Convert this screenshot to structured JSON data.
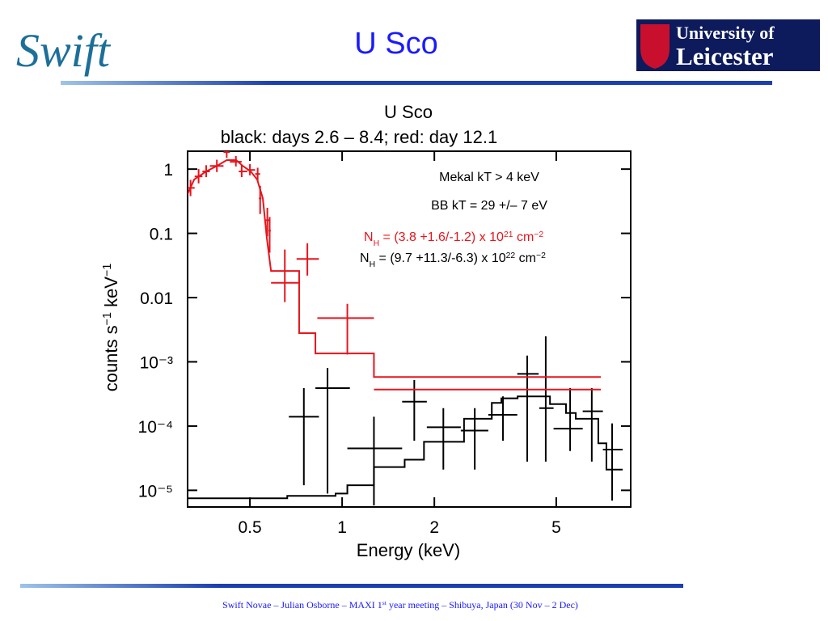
{
  "header": {
    "title": "U Sco",
    "logo_left": "Swift",
    "logo_right": [
      "University of",
      "Leicester"
    ]
  },
  "footer": {
    "parts": [
      {
        "text": "Swift Novae – Julian Osborne – MAXI 1"
      },
      {
        "text": "st",
        "shift": "super"
      },
      {
        "text": " year meeting – Shibuya, Japan (30 Nov – 2 Dec)"
      }
    ]
  },
  "chart_data": {
    "type": "scatter",
    "title": "U Sco",
    "subtitle": "black: days 2.6 – 8.4; red: day 12.1",
    "x_label": "Energy (keV)",
    "y_label": [
      {
        "text": "counts s"
      },
      {
        "text": "−1",
        "shift": "super"
      },
      {
        "text": " keV"
      },
      {
        "text": "−1",
        "shift": "super"
      }
    ],
    "xlog": true,
    "ylog": true,
    "xlim": [
      0.313,
      8.75
    ],
    "ylim": [
      5.5e-06,
      1.9
    ],
    "xticks": [
      0.5,
      1,
      2,
      5
    ],
    "yticks": [
      1,
      0.1,
      0.01,
      {
        "value": 0.001,
        "label": "10⁻³"
      },
      {
        "value": 0.0001,
        "label": "10⁻⁴"
      },
      {
        "value": 1e-05,
        "label": "10⁻⁵"
      }
    ],
    "annotations": [
      {
        "color": "#000000",
        "parts": [
          {
            "text": "Mekal kT > 4 keV"
          }
        ]
      },
      {
        "color": "#000000",
        "parts": [
          {
            "text": "BB kT = 29 +/– 7 eV"
          }
        ]
      },
      {
        "color": "#e8141c",
        "parts": [
          {
            "text": "N"
          },
          {
            "text": "H",
            "shift": "sub"
          },
          {
            "text": " = (3.8 +1.6/-1.2) x 10"
          },
          {
            "text": "21",
            "shift": "super"
          },
          {
            "text": " cm"
          },
          {
            "text": "−2",
            "shift": "super"
          }
        ]
      },
      {
        "color": "#000000",
        "parts": [
          {
            "text": "N"
          },
          {
            "text": "H",
            "shift": "sub"
          },
          {
            "text": " = (9.7 +11.3/-6.3) x 10"
          },
          {
            "text": "22",
            "shift": "super"
          },
          {
            "text": " cm"
          },
          {
            "text": "−2",
            "shift": "super"
          }
        ]
      }
    ],
    "series": [
      {
        "style": "errorbar",
        "color": "#e8141c",
        "x": [
          0.32,
          0.34,
          0.36,
          0.39,
          0.42,
          0.45,
          0.47,
          0.5,
          0.53,
          0.54,
          0.57,
          0.58,
          0.65,
          0.77,
          1.04
        ],
        "x_low": [
          0.31,
          0.33,
          0.35,
          0.37,
          0.41,
          0.43,
          0.46,
          0.49,
          0.52,
          0.535,
          0.56,
          0.575,
          0.586,
          0.71,
          0.83
        ],
        "x_high": [
          0.33,
          0.35,
          0.37,
          0.41,
          0.43,
          0.47,
          0.49,
          0.52,
          0.54,
          0.545,
          0.58,
          0.585,
          0.724,
          0.84,
          1.27
        ],
        "values": [
          0.51,
          0.77,
          0.92,
          1.12,
          1.84,
          1.3,
          0.92,
          0.97,
          0.84,
          0.35,
          0.16,
          0.11,
          0.017,
          0.04,
          0.0048
        ],
        "y_low": [
          0.38,
          0.6,
          0.75,
          0.9,
          1.5,
          1.1,
          0.75,
          0.8,
          0.65,
          0.2,
          0.09,
          0.05,
          0.0085,
          0.022,
          0.0013
        ],
        "y_high": [
          0.68,
          1.0,
          1.15,
          1.4,
          2.2,
          1.6,
          1.15,
          1.2,
          1.05,
          0.55,
          0.25,
          0.18,
          0.056,
          0.07,
          0.008
        ]
      },
      {
        "style": "errorbar",
        "color": "#000000",
        "x": [
          0.75,
          0.896,
          1.27,
          1.72,
          2.14,
          2.71,
          3.35,
          4.02,
          4.62,
          5.55,
          6.53,
          7.61
        ],
        "x_low": [
          0.67,
          0.818,
          1.04,
          1.57,
          1.89,
          2.44,
          3.0,
          3.73,
          4.4,
          4.9,
          6.1,
          7.1
        ],
        "x_high": [
          0.84,
          1.06,
          1.57,
          1.89,
          2.44,
          3.0,
          3.73,
          4.38,
          4.9,
          6.1,
          7.1,
          8.24
        ],
        "values": [
          0.00014,
          0.00039,
          4.5e-05,
          0.00024,
          9.6e-05,
          8.5e-05,
          0.00015,
          0.00065,
          0.00019,
          9.1e-05,
          0.00017,
          4.3e-05
        ],
        "y_low": [
          1.2e-05,
          8.9e-06,
          5.8e-06,
          5.9e-05,
          2.1e-05,
          2.1e-05,
          5.9e-05,
          2.8e-05,
          2.8e-05,
          4.1e-05,
          2.8e-05,
          6.9e-06
        ],
        "y_high": [
          0.00039,
          0.0008,
          0.00014,
          0.00052,
          0.00019,
          0.00019,
          0.00029,
          0.00125,
          0.0025,
          0.00039,
          0.00039,
          0.00011
        ]
      },
      {
        "style": "line",
        "color": "#e8141c",
        "x": [
          0.313,
          0.329,
          0.36,
          0.39,
          0.42,
          0.451,
          0.474,
          0.503,
          0.528,
          0.551,
          0.568,
          0.586,
          0.724,
          0.724,
          0.818,
          0.818,
          1.27,
          1.27,
          6.99
        ],
        "values": [
          0.41,
          0.69,
          0.92,
          1.12,
          1.38,
          1.38,
          1.12,
          0.92,
          0.69,
          0.35,
          0.083,
          0.026,
          0.026,
          0.0028,
          0.0028,
          0.00135,
          0.00135,
          0.00058,
          0.00058
        ]
      },
      {
        "style": "line",
        "color": "#e8141c",
        "x": [
          1.27,
          6.99
        ],
        "values": [
          0.00037,
          0.00037
        ]
      },
      {
        "style": "line",
        "color": "#000000",
        "x": [
          0.313,
          0.662,
          0.662,
          0.952,
          0.952,
          1.04,
          1.04,
          1.27,
          1.27,
          1.6,
          1.6,
          1.85,
          1.85,
          2.5,
          2.5,
          3.08,
          3.08,
          3.31,
          3.31,
          3.74,
          3.74,
          4.77,
          4.77,
          5.38,
          5.38,
          5.79,
          5.79,
          6.86,
          6.86,
          7.29,
          7.29,
          8.24
        ],
        "values": [
          7.5e-06,
          7.5e-06,
          8.2e-06,
          8.2e-06,
          8.9e-06,
          8.9e-06,
          1.2e-05,
          1.2e-05,
          2.3e-05,
          2.3e-05,
          3e-05,
          3e-05,
          5.7e-05,
          5.7e-05,
          0.00013,
          0.00013,
          0.00023,
          0.00023,
          0.00027,
          0.00027,
          0.00029,
          0.00029,
          0.00022,
          0.00022,
          0.00016,
          0.00016,
          0.00013,
          0.00013,
          5.4e-05,
          5.4e-05,
          2.1e-05,
          2.1e-05
        ]
      }
    ]
  }
}
